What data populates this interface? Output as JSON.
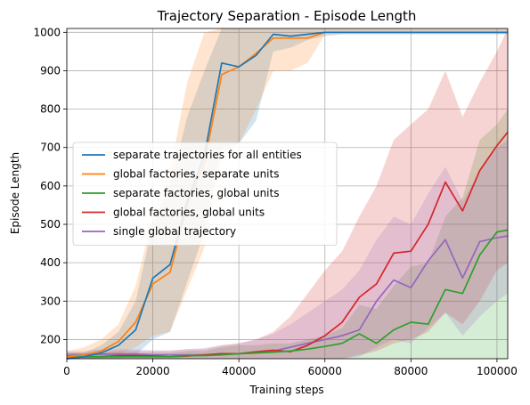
{
  "chart_data": {
    "type": "line",
    "title": "Trajectory Separation - Episode Length",
    "xlabel": "Training steps",
    "ylabel": "Episode Length",
    "xlim": [
      0,
      102500
    ],
    "ylim": [
      150,
      1010
    ],
    "xticks": [
      0,
      20000,
      40000,
      60000,
      80000,
      100000
    ],
    "yticks": [
      200,
      300,
      400,
      500,
      600,
      700,
      800,
      900,
      1000
    ],
    "grid": true,
    "legend_position": "center-left",
    "series": [
      {
        "name": "separate trajectories for all entities",
        "color": "#1f77b4",
        "x": [
          0,
          4000,
          8000,
          12000,
          16000,
          20000,
          24000,
          28000,
          32000,
          36000,
          40000,
          44000,
          48000,
          52000,
          56000,
          60000,
          64000,
          68000,
          72000,
          76000,
          80000,
          84000,
          88000,
          92000,
          96000,
          100000,
          102500
        ],
        "y": [
          150,
          155,
          165,
          185,
          225,
          360,
          395,
          560,
          680,
          920,
          910,
          940,
          995,
          990,
          995,
          1000,
          1000,
          1000,
          1000,
          1000,
          1000,
          1000,
          1000,
          1000,
          1000,
          1000,
          1000
        ],
        "lower": [
          150,
          150,
          150,
          150,
          160,
          200,
          220,
          350,
          480,
          700,
          710,
          770,
          950,
          960,
          980,
          990,
          995,
          995,
          995,
          995,
          995,
          995,
          995,
          995,
          995,
          995,
          995
        ],
        "upper": [
          165,
          165,
          185,
          220,
          300,
          500,
          600,
          780,
          900,
          1010,
          1010,
          1010,
          1010,
          1010,
          1010,
          1010,
          1010,
          1010,
          1010,
          1010,
          1010,
          1010,
          1010,
          1010,
          1010,
          1010,
          1010
        ]
      },
      {
        "name": "global factories, separate units",
        "color": "#ff7f0e",
        "x": [
          0,
          4000,
          8000,
          12000,
          16000,
          20000,
          24000,
          28000,
          32000,
          36000,
          40000,
          44000,
          48000,
          52000,
          56000,
          60000,
          64000,
          68000,
          72000,
          76000,
          80000,
          84000,
          88000,
          92000,
          96000,
          100000,
          102500
        ],
        "y": [
          155,
          160,
          170,
          195,
          245,
          345,
          375,
          550,
          660,
          890,
          910,
          945,
          985,
          985,
          985,
          1000,
          1000,
          1000,
          1000,
          1000,
          1000,
          1000,
          1000,
          1000,
          1000,
          1000,
          1000
        ],
        "lower": [
          150,
          150,
          150,
          160,
          180,
          210,
          220,
          330,
          440,
          680,
          710,
          800,
          900,
          900,
          920,
          995,
          995,
          995,
          995,
          995,
          995,
          995,
          995,
          995,
          995,
          995,
          995
        ],
        "upper": [
          170,
          180,
          200,
          240,
          340,
          520,
          640,
          870,
          1000,
          1010,
          1010,
          1010,
          1010,
          1010,
          1010,
          1010,
          1010,
          1010,
          1010,
          1010,
          1010,
          1010,
          1010,
          1010,
          1010,
          1010,
          1010
        ]
      },
      {
        "name": "separate factories, global units",
        "color": "#2ca02c",
        "x": [
          0,
          4000,
          8000,
          12000,
          16000,
          20000,
          24000,
          28000,
          32000,
          36000,
          40000,
          44000,
          48000,
          52000,
          56000,
          60000,
          64000,
          68000,
          72000,
          76000,
          80000,
          84000,
          88000,
          92000,
          96000,
          100000,
          102500
        ],
        "y": [
          155,
          155,
          155,
          155,
          155,
          155,
          155,
          158,
          158,
          160,
          163,
          165,
          167,
          170,
          175,
          182,
          190,
          215,
          190,
          225,
          245,
          240,
          330,
          320,
          420,
          480,
          485
        ],
        "lower": [
          150,
          150,
          150,
          150,
          150,
          150,
          150,
          150,
          150,
          150,
          150,
          150,
          150,
          150,
          150,
          150,
          150,
          150,
          150,
          150,
          150,
          150,
          150,
          150,
          150,
          150,
          150
        ],
        "upper": [
          165,
          165,
          165,
          165,
          165,
          165,
          165,
          170,
          170,
          180,
          185,
          185,
          190,
          190,
          200,
          210,
          230,
          290,
          280,
          340,
          390,
          400,
          520,
          570,
          720,
          760,
          800
        ]
      },
      {
        "name": "global factories, global units",
        "color": "#d62728",
        "x": [
          0,
          4000,
          8000,
          12000,
          16000,
          20000,
          24000,
          28000,
          32000,
          36000,
          40000,
          44000,
          48000,
          52000,
          56000,
          60000,
          64000,
          68000,
          72000,
          76000,
          80000,
          84000,
          88000,
          92000,
          96000,
          100000,
          102500
        ],
        "y": [
          155,
          155,
          155,
          158,
          158,
          157,
          155,
          157,
          160,
          163,
          163,
          168,
          172,
          168,
          185,
          210,
          245,
          310,
          345,
          425,
          430,
          500,
          610,
          535,
          640,
          705,
          740
        ],
        "lower": [
          150,
          150,
          150,
          150,
          150,
          150,
          150,
          150,
          150,
          150,
          150,
          150,
          150,
          150,
          150,
          150,
          150,
          160,
          170,
          190,
          200,
          220,
          270,
          240,
          300,
          380,
          400
        ],
        "upper": [
          165,
          165,
          165,
          170,
          170,
          170,
          170,
          175,
          175,
          185,
          190,
          200,
          220,
          260,
          320,
          380,
          430,
          520,
          600,
          720,
          760,
          800,
          900,
          780,
          870,
          950,
          1010
        ]
      },
      {
        "name": "single global trajectory",
        "color": "#9467bd",
        "x": [
          0,
          4000,
          8000,
          12000,
          16000,
          20000,
          24000,
          28000,
          32000,
          36000,
          40000,
          44000,
          48000,
          52000,
          56000,
          60000,
          64000,
          68000,
          72000,
          76000,
          80000,
          84000,
          88000,
          92000,
          96000,
          100000,
          102500
        ],
        "y": [
          158,
          160,
          162,
          162,
          162,
          160,
          160,
          160,
          160,
          163,
          163,
          165,
          170,
          180,
          190,
          200,
          210,
          225,
          300,
          355,
          335,
          405,
          460,
          360,
          455,
          465,
          470
        ],
        "lower": [
          150,
          150,
          150,
          150,
          150,
          150,
          150,
          150,
          150,
          150,
          150,
          150,
          150,
          150,
          150,
          150,
          150,
          155,
          180,
          200,
          190,
          230,
          270,
          210,
          260,
          300,
          320
        ],
        "upper": [
          170,
          170,
          175,
          175,
          175,
          172,
          172,
          175,
          178,
          185,
          190,
          200,
          215,
          240,
          270,
          300,
          330,
          380,
          460,
          520,
          500,
          580,
          650,
          560,
          640,
          700,
          720
        ]
      }
    ]
  }
}
